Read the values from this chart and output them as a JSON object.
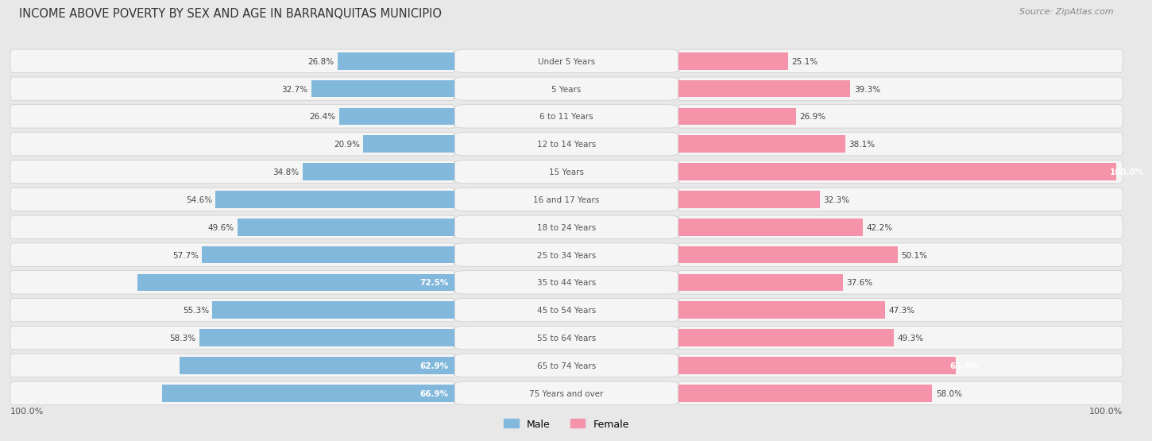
{
  "title": "INCOME ABOVE POVERTY BY SEX AND AGE IN BARRANQUITAS MUNICIPIO",
  "source": "Source: ZipAtlas.com",
  "categories": [
    "Under 5 Years",
    "5 Years",
    "6 to 11 Years",
    "12 to 14 Years",
    "15 Years",
    "16 and 17 Years",
    "18 to 24 Years",
    "25 to 34 Years",
    "35 to 44 Years",
    "45 to 54 Years",
    "55 to 64 Years",
    "65 to 74 Years",
    "75 Years and over"
  ],
  "male_values": [
    26.8,
    32.7,
    26.4,
    20.9,
    34.8,
    54.6,
    49.6,
    57.7,
    72.5,
    55.3,
    58.3,
    62.9,
    66.9
  ],
  "female_values": [
    25.1,
    39.3,
    26.9,
    38.1,
    100.0,
    32.3,
    42.2,
    50.1,
    37.6,
    47.3,
    49.3,
    63.4,
    58.0
  ],
  "male_color": "#82b8dc",
  "female_color": "#f493aa",
  "male_label": "Male",
  "female_label": "Female",
  "bar_height": 0.62,
  "background_color": "#e8e8e8",
  "row_bg_color": "#f5f5f5",
  "max_value": 100.0,
  "title_fontsize": 10.5,
  "source_fontsize": 8,
  "label_fontsize": 8,
  "value_fontsize": 7.5,
  "cat_fontsize": 7.5,
  "axis_label": "100.0%",
  "male_white_threshold": 60.0,
  "female_white_threshold": 60.0
}
